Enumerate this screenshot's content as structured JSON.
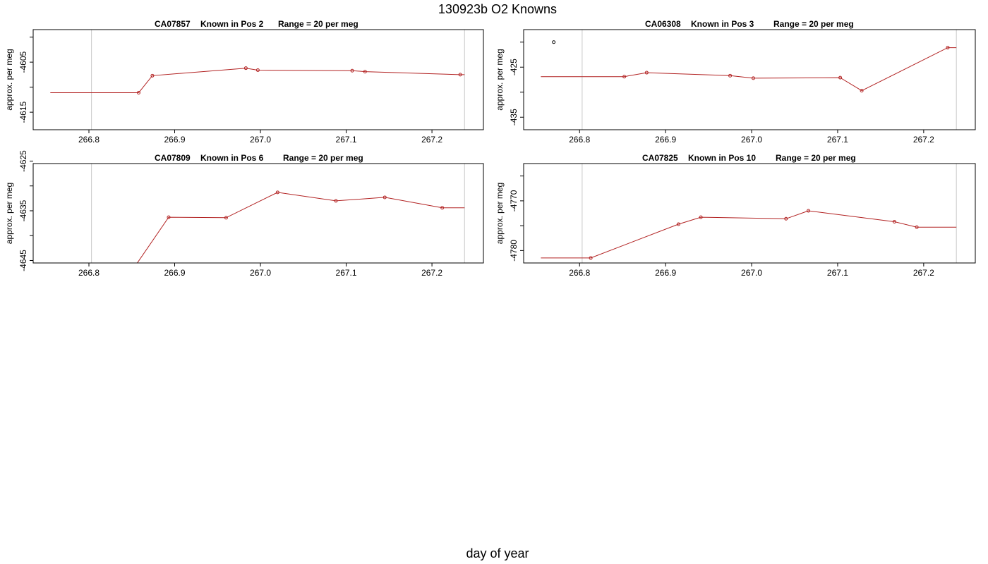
{
  "figure": {
    "title": "130923b   O2 Knowns",
    "xlabel": "day of year"
  },
  "colors": {
    "series_line": "#b22222",
    "marker": "#b22222",
    "outlier_marker": "#000000",
    "vline": "#c8c8c8",
    "axis": "#000000"
  },
  "chart_data": [
    {
      "type": "line",
      "title_parts": [
        "CA07857",
        "Known in Pos 2",
        "Range = 20 per meg"
      ],
      "ylabel": "approx. per meg",
      "xlim": [
        266.735,
        267.26
      ],
      "ylim": [
        -4618.5,
        -4598.5
      ],
      "xticks": [
        266.8,
        266.9,
        267.0,
        267.1,
        267.2
      ],
      "xtick_labels": [
        "266.8",
        "266.9",
        "267.0",
        "267.1",
        "267.2"
      ],
      "yticks": [
        -4600,
        -4605,
        -4610,
        -4615
      ],
      "ytick_labels": [
        "",
        "-4605",
        "",
        "-4615"
      ],
      "vlines": [
        266.803,
        267.238
      ],
      "start": {
        "x": 266.755,
        "y": -4611.1
      },
      "end": {
        "x": 267.238,
        "y": -4607.5
      },
      "points": [
        {
          "x": 266.858,
          "y": -4611.1
        },
        {
          "x": 266.874,
          "y": -4607.7
        },
        {
          "x": 266.983,
          "y": -4606.2
        },
        {
          "x": 266.997,
          "y": -4606.6
        },
        {
          "x": 267.107,
          "y": -4606.7
        },
        {
          "x": 267.122,
          "y": -4606.9
        },
        {
          "x": 267.233,
          "y": -4607.5
        }
      ],
      "outliers": []
    },
    {
      "type": "line",
      "title_parts": [
        "CA06308",
        "Known in Pos 3",
        "Range = 20 per meg"
      ],
      "ylabel": "approx. per meg",
      "xlim": [
        266.735,
        267.26
      ],
      "ylim": [
        -437.5,
        -417.5
      ],
      "xticks": [
        266.8,
        266.9,
        267.0,
        267.1,
        267.2
      ],
      "xtick_labels": [
        "266.8",
        "266.9",
        "267.0",
        "267.1",
        "267.2"
      ],
      "yticks": [
        -420,
        -425,
        -430,
        -435
      ],
      "ytick_labels": [
        "",
        "-425",
        "",
        "-435"
      ],
      "vlines": [
        266.803,
        267.238
      ],
      "start": {
        "x": 266.755,
        "y": -426.9
      },
      "end": {
        "x": 267.238,
        "y": -421.1
      },
      "points": [
        {
          "x": 266.852,
          "y": -426.9
        },
        {
          "x": 266.878,
          "y": -426.1
        },
        {
          "x": 266.975,
          "y": -426.7
        },
        {
          "x": 267.002,
          "y": -427.2
        },
        {
          "x": 267.103,
          "y": -427.1
        },
        {
          "x": 267.128,
          "y": -429.7
        },
        {
          "x": 267.228,
          "y": -421.1
        }
      ],
      "outliers": [
        {
          "x": 266.77,
          "y": -420.0
        }
      ]
    },
    {
      "type": "line",
      "title_parts": [
        "CA07809",
        "Known in Pos 6",
        "Range = 20 per meg"
      ],
      "ylabel": "approx. per meg",
      "xlim": [
        266.735,
        267.26
      ],
      "ylim": [
        -4645.5,
        -4625.5
      ],
      "xticks": [
        266.8,
        266.9,
        267.0,
        267.1,
        267.2
      ],
      "xtick_labels": [
        "266.8",
        "266.9",
        "267.0",
        "267.1",
        "267.2"
      ],
      "yticks": [
        -4625,
        -4630,
        -4635,
        -4640,
        -4645
      ],
      "ytick_labels": [
        "-4625",
        "",
        "-4635",
        "",
        "-4645"
      ],
      "vlines": [
        266.803,
        267.238
      ],
      "start": {
        "x": 266.755,
        "y": -4646.6
      },
      "end": {
        "x": 267.238,
        "y": -4634.4
      },
      "points": [
        {
          "x": 266.852,
          "y": -4646.6
        },
        {
          "x": 266.893,
          "y": -4636.3
        },
        {
          "x": 266.96,
          "y": -4636.4
        },
        {
          "x": 267.02,
          "y": -4631.3
        },
        {
          "x": 267.088,
          "y": -4633.0
        },
        {
          "x": 267.145,
          "y": -4632.3
        },
        {
          "x": 267.212,
          "y": -4634.4
        }
      ],
      "outliers": []
    },
    {
      "type": "line",
      "title_parts": [
        "CA07825",
        "Known in Pos 10",
        "Range = 20 per meg"
      ],
      "ylabel": "approx. per meg",
      "xlim": [
        266.735,
        267.26
      ],
      "ylim": [
        -4782.5,
        -4762.5
      ],
      "xticks": [
        266.8,
        266.9,
        267.0,
        267.1,
        267.2
      ],
      "xtick_labels": [
        "266.8",
        "266.9",
        "267.0",
        "267.1",
        "267.2"
      ],
      "yticks": [
        -4765,
        -4770,
        -4775,
        -4780
      ],
      "ytick_labels": [
        "",
        "-4770",
        "",
        "-4780"
      ],
      "vlines": [
        266.803,
        267.238
      ],
      "start": {
        "x": 266.755,
        "y": -4781.5
      },
      "end": {
        "x": 267.238,
        "y": -4775.3
      },
      "points": [
        {
          "x": 266.813,
          "y": -4781.5
        },
        {
          "x": 266.915,
          "y": -4774.7
        },
        {
          "x": 266.941,
          "y": -4773.3
        },
        {
          "x": 267.04,
          "y": -4773.6
        },
        {
          "x": 267.066,
          "y": -4772.0
        },
        {
          "x": 267.166,
          "y": -4774.2
        },
        {
          "x": 267.192,
          "y": -4775.3
        }
      ],
      "outliers": []
    }
  ]
}
